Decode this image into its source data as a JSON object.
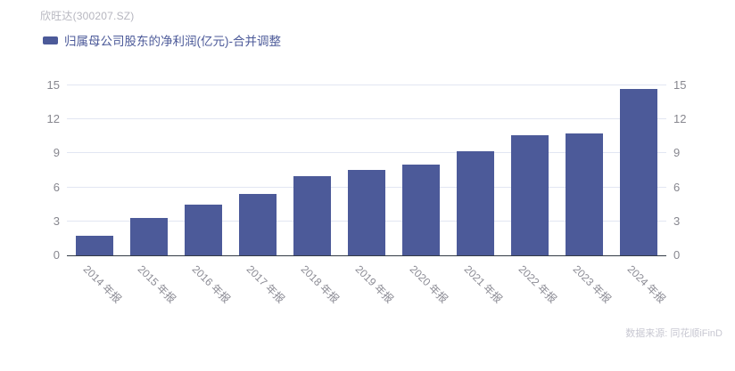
{
  "header": {
    "title": "欣旺达(300207.SZ)"
  },
  "legend": {
    "label": "归属母公司股东的净利润(亿元)-合并调整",
    "swatch_color": "#4c5a99"
  },
  "chart_data": {
    "type": "bar",
    "title": "欣旺达(300207.SZ)",
    "series_name": "归属母公司股东的净利润(亿元)-合并调整",
    "categories": [
      "2014 年报",
      "2015 年报",
      "2016 年报",
      "2017 年报",
      "2018 年报",
      "2019 年报",
      "2020 年报",
      "2021 年报",
      "2022 年报",
      "2023 年报",
      "2024 年报"
    ],
    "values": [
      1.75,
      3.29,
      4.5,
      5.45,
      7.01,
      7.51,
      8.02,
      9.16,
      10.64,
      10.76,
      14.68
    ],
    "xlabel": "",
    "ylabel": "",
    "ylim": [
      0,
      15
    ],
    "yticks": [
      0,
      3,
      6,
      9,
      12,
      15
    ],
    "grid": true,
    "legend_position": "top-left",
    "y_axis_sides": "both",
    "x_label_rotation_deg": 45,
    "bar_color": "#4c5a99"
  },
  "footer": {
    "source": "数据来源: 同花顺iFinD"
  },
  "colors": {
    "bar": "#4c5a99",
    "gridline": "#e2e6f2",
    "axis_line": "#333a45",
    "tick_label": "#87878f",
    "x_label": "#8b8b94",
    "title_text": "#b6b6bf",
    "legend_text": "#4c5a99",
    "source_text": "#c8c8d2",
    "background": "#ffffff"
  }
}
